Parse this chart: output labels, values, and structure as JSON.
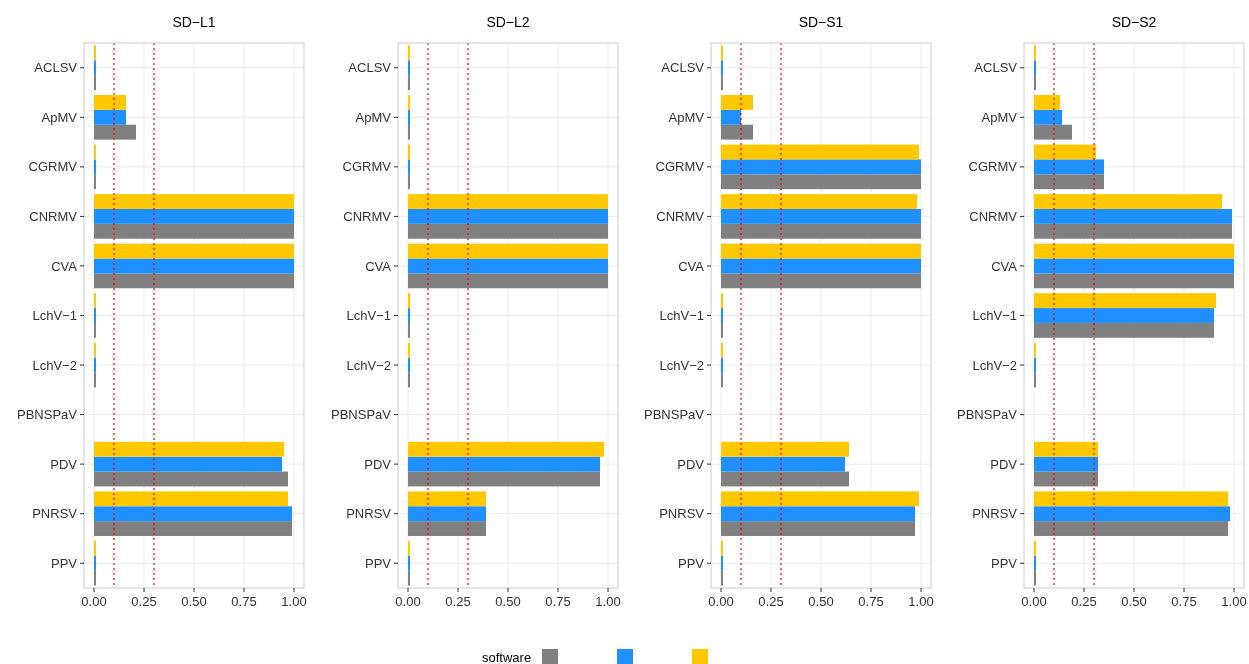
{
  "chart_data": [
    {
      "type": "bar",
      "orientation": "horizontal",
      "title": "SD−L1",
      "categories": [
        "ACLSV",
        "ApMV",
        "CGRMV",
        "CNRMV",
        "CVA",
        "LchV−1",
        "LchV−2",
        "PBNSPaV",
        "PDV",
        "PNRSV",
        "PPV"
      ],
      "series": [
        {
          "color": "#808080",
          "values": [
            0.01,
            0.21,
            0.01,
            1,
            1,
            0.01,
            0.01,
            null,
            0.97,
            0.99,
            0.01
          ]
        },
        {
          "color": "#1e90ff",
          "values": [
            0.01,
            0.16,
            0.01,
            1,
            1,
            0.01,
            0.01,
            null,
            0.94,
            0.99,
            0.01
          ]
        },
        {
          "color": "#ffc800",
          "values": [
            0.01,
            0.16,
            0.01,
            1,
            1,
            0.01,
            0.01,
            null,
            0.95,
            0.97,
            0.01
          ]
        }
      ],
      "xlim": [
        -0.05,
        1.05
      ],
      "xticks": [
        {
          "value": 0,
          "label": "0.00"
        },
        {
          "value": 0.25,
          "label": "0.25"
        },
        {
          "value": 0.5,
          "label": "0.50"
        },
        {
          "value": 0.75,
          "label": "0.75"
        },
        {
          "value": 1,
          "label": "1.00"
        }
      ],
      "grid": true,
      "legend_title": "software",
      "ref_lines": [
        {
          "axis": "x",
          "value": 0.1,
          "color": "#ff0000",
          "line_style": "dotted"
        },
        {
          "axis": "x",
          "value": 0.3,
          "color": "#ff0000",
          "line_style": "dotted"
        }
      ]
    },
    {
      "type": "bar",
      "orientation": "horizontal",
      "title": "SD−L2",
      "categories": [
        "ACLSV",
        "ApMV",
        "CGRMV",
        "CNRMV",
        "CVA",
        "LchV−1",
        "LchV−2",
        "PBNSPaV",
        "PDV",
        "PNRSV",
        "PPV"
      ],
      "series": [
        {
          "color": "#808080",
          "values": [
            0.01,
            0.01,
            0.01,
            1,
            1,
            0.01,
            0.01,
            null,
            0.96,
            0.39,
            0.01
          ]
        },
        {
          "color": "#1e90ff",
          "values": [
            0.01,
            0.01,
            0.01,
            1,
            1,
            0.01,
            0.01,
            null,
            0.96,
            0.39,
            0.01
          ]
        },
        {
          "color": "#ffc800",
          "values": [
            0.01,
            0.01,
            0.01,
            1,
            1,
            0.01,
            0.01,
            null,
            0.98,
            0.39,
            0.01
          ]
        }
      ],
      "xlim": [
        -0.05,
        1.05
      ],
      "xticks": [
        {
          "value": 0,
          "label": "0.00"
        },
        {
          "value": 0.25,
          "label": "0.25"
        },
        {
          "value": 0.5,
          "label": "0.50"
        },
        {
          "value": 0.75,
          "label": "0.75"
        },
        {
          "value": 1,
          "label": "1.00"
        }
      ],
      "grid": true,
      "ref_lines": [
        {
          "axis": "x",
          "value": 0.1,
          "color": "#ff0000",
          "line_style": "dotted"
        },
        {
          "axis": "x",
          "value": 0.3,
          "color": "#ff0000",
          "line_style": "dotted"
        }
      ]
    },
    {
      "type": "bar",
      "orientation": "horizontal",
      "title": "SD−S1",
      "categories": [
        "ACLSV",
        "ApMV",
        "CGRMV",
        "CNRMV",
        "CVA",
        "LchV−1",
        "LchV−2",
        "PBNSPaV",
        "PDV",
        "PNRSV",
        "PPV"
      ],
      "series": [
        {
          "color": "#808080",
          "values": [
            0.01,
            0.16,
            1,
            1,
            1,
            0.01,
            0.01,
            null,
            0.64,
            0.97,
            0.01
          ]
        },
        {
          "color": "#1e90ff",
          "values": [
            0.01,
            0.1,
            1,
            1,
            1,
            0.01,
            0.01,
            null,
            0.62,
            0.97,
            0.01
          ]
        },
        {
          "color": "#ffc800",
          "values": [
            0.01,
            0.16,
            0.99,
            0.98,
            1,
            0.01,
            0.01,
            null,
            0.64,
            0.99,
            0.01
          ]
        }
      ],
      "xlim": [
        -0.05,
        1.05
      ],
      "xticks": [
        {
          "value": 0,
          "label": "0.00"
        },
        {
          "value": 0.25,
          "label": "0.25"
        },
        {
          "value": 0.5,
          "label": "0.50"
        },
        {
          "value": 0.75,
          "label": "0.75"
        },
        {
          "value": 1,
          "label": "1.00"
        }
      ],
      "grid": true,
      "ref_lines": [
        {
          "axis": "x",
          "value": 0.1,
          "color": "#ff0000",
          "line_style": "dotted"
        },
        {
          "axis": "x",
          "value": 0.3,
          "color": "#ff0000",
          "line_style": "dotted"
        }
      ]
    },
    {
      "type": "bar",
      "orientation": "horizontal",
      "title": "SD−S2",
      "categories": [
        "ACLSV",
        "ApMV",
        "CGRMV",
        "CNRMV",
        "CVA",
        "LchV−1",
        "LchV−2",
        "PBNSPaV",
        "PDV",
        "PNRSV",
        "PPV"
      ],
      "series": [
        {
          "color": "#808080",
          "values": [
            0.01,
            0.19,
            0.35,
            0.99,
            1,
            0.9,
            0.01,
            null,
            0.32,
            0.97,
            0.01
          ]
        },
        {
          "color": "#1e90ff",
          "values": [
            0.01,
            0.14,
            0.35,
            0.99,
            1,
            0.9,
            0.01,
            null,
            0.32,
            0.98,
            0.01
          ]
        },
        {
          "color": "#ffc800",
          "values": [
            0.01,
            0.13,
            0.31,
            0.94,
            1,
            0.91,
            0.01,
            null,
            0.32,
            0.97,
            0.01
          ]
        }
      ],
      "xlim": [
        -0.05,
        1.05
      ],
      "xticks": [
        {
          "value": 0,
          "label": "0.00"
        },
        {
          "value": 0.25,
          "label": "0.25"
        },
        {
          "value": 0.5,
          "label": "0.50"
        },
        {
          "value": 0.75,
          "label": "0.75"
        },
        {
          "value": 1,
          "label": "1.00"
        }
      ],
      "grid": true,
      "ref_lines": [
        {
          "axis": "x",
          "value": 0.1,
          "color": "#ff0000",
          "line_style": "dotted"
        },
        {
          "axis": "x",
          "value": 0.3,
          "color": "#ff0000",
          "line_style": "dotted"
        }
      ]
    }
  ]
}
